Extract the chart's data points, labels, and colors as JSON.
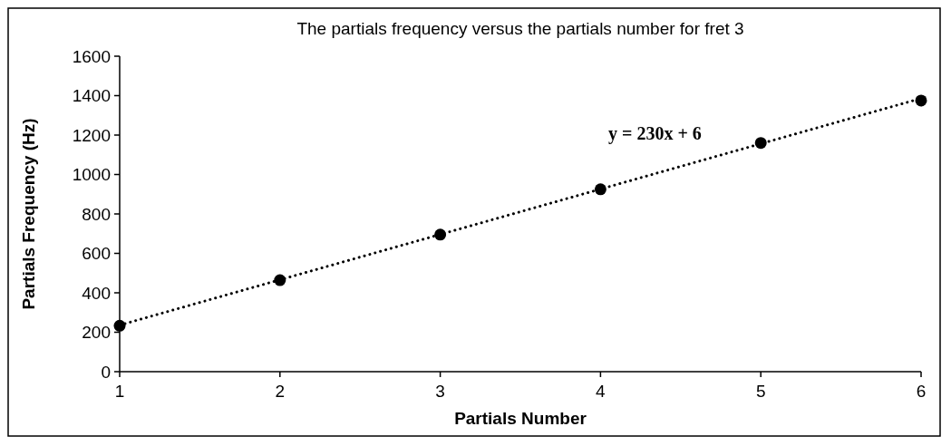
{
  "chart_data": {
    "type": "scatter",
    "title": "The partials frequency versus the partials number for fret 3",
    "xlabel": "Partials Number",
    "ylabel": "Partials Frequency (Hz)",
    "x": [
      1,
      2,
      3,
      4,
      5,
      6
    ],
    "series": [
      {
        "color": "#000000",
        "values": [
          233,
          464,
          695,
          925,
          1160,
          1375
        ],
        "marker": "circle"
      },
      {
        "type": "line",
        "color": "#000000",
        "x": [
          1,
          6
        ],
        "values": [
          236,
          1386
        ],
        "marker": "none",
        "line_style": "dotted"
      }
    ],
    "annotations": [
      "y = 230x + 6"
    ],
    "xlim": [
      1,
      6
    ],
    "xticks": [
      1,
      2,
      3,
      4,
      5,
      6
    ],
    "ylim": [
      0,
      1600
    ],
    "yticks": [
      0,
      200,
      400,
      600,
      800,
      1000,
      1200,
      1400,
      1600
    ],
    "grid": false
  }
}
